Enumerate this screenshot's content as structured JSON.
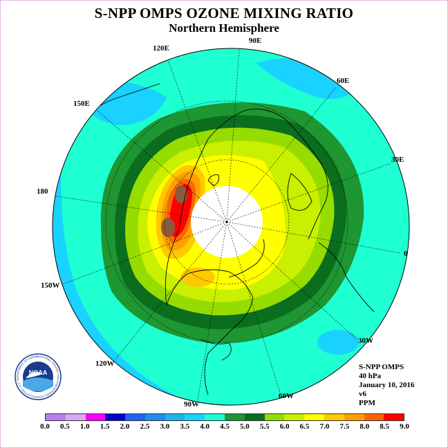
{
  "title": "S-NPP OMPS OZONE MIXING RATIO",
  "subtitle": "Northern Hemisphere",
  "longitude_labels": [
    "90E",
    "60E",
    "30E",
    "0",
    "30W",
    "60W",
    "90W",
    "120W",
    "150W",
    "180",
    "150E",
    "120E"
  ],
  "info": {
    "instrument": "S-NPP OMPS",
    "level": "40 hPa",
    "date": "January 10, 2016",
    "version": "v6",
    "units": "PPM"
  },
  "logo": {
    "text": "NOAA",
    "ring_text": "NATIONAL OCEANIC AND ATMOSPHERIC ADMINISTRATION • U.S. DEPARTMENT OF COMMERCE"
  },
  "colorbar": {
    "labels": [
      "0.0",
      "0.5",
      "1.0",
      "1.5",
      "2.0",
      "2.5",
      "3.0",
      "3.5",
      "4.0",
      "4.5",
      "5.0",
      "5.5",
      "6.0",
      "6.5",
      "7.0",
      "7.5",
      "8.0",
      "8.5",
      "9.0"
    ],
    "colors": [
      "#b87ff0",
      "#d8a8f0",
      "#ff00ff",
      "#0000cc",
      "#1e64f0",
      "#1e8cf0",
      "#1eb4f0",
      "#19d2ff",
      "#1effd2",
      "#1e9632",
      "#0a6e1e",
      "#96dc00",
      "#c8f000",
      "#ffff00",
      "#ffc800",
      "#ffa000",
      "#ff6400",
      "#ff0000",
      "#8b5a3c"
    ]
  },
  "map": {
    "projection": "north-polar-stereographic",
    "contour_levels_ppm": [
      3.5,
      4.0,
      4.5,
      5.0,
      5.5,
      6.0,
      6.5,
      7.0,
      7.5,
      8.0,
      8.5,
      9.0
    ]
  }
}
